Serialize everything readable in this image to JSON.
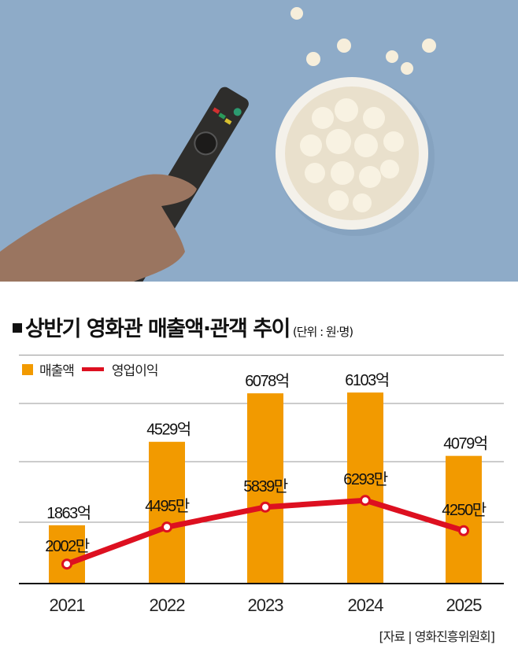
{
  "header": {
    "title": "상반기 영화관 매출액·관객 추이",
    "unit": "(단위 : 원·명)"
  },
  "legend": {
    "bar_label": "매출액",
    "line_label": "영업이익"
  },
  "source": "[자료 | 영화진흥위원회]",
  "colors": {
    "bar": "#F29A00",
    "line": "#DD1020",
    "photo_background": "#8EABC8"
  },
  "photo": {
    "description_icons": [
      "remote-control",
      "popcorn-bowl",
      "hand"
    ]
  },
  "chart_data": {
    "type": "bar+line",
    "categories": [
      "2021",
      "2022",
      "2023",
      "2024",
      "2025"
    ],
    "series": [
      {
        "name": "매출액",
        "type": "bar",
        "values": [
          1863,
          4529,
          6078,
          6103,
          4079
        ],
        "labels": [
          "1863억",
          "4529억",
          "6078억",
          "6103억",
          "4079억"
        ]
      },
      {
        "name": "영업이익",
        "type": "line",
        "values": [
          2002,
          4495,
          5839,
          6293,
          4250
        ],
        "labels": [
          "2002만",
          "4495만",
          "5839만",
          "6293만",
          "4250만"
        ]
      }
    ],
    "grid": true,
    "legend_position": "top-left"
  }
}
